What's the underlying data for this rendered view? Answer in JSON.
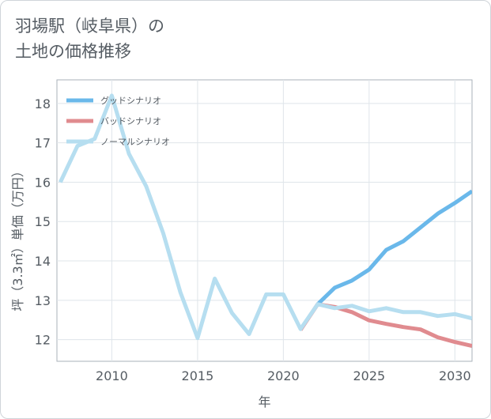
{
  "title": {
    "line1": "羽場駅（岐阜県）の",
    "line2": "土地の価格推移"
  },
  "chart_data": {
    "type": "line",
    "xlabel": "年",
    "ylabel": "坪（3.3㎡）単価（万円）",
    "xlim": [
      2006.8,
      2031
    ],
    "ylim": [
      11.45,
      18.6
    ],
    "xticks": [
      2010,
      2015,
      2020,
      2025,
      2030
    ],
    "yticks": [
      12,
      13,
      14,
      15,
      16,
      17,
      18
    ],
    "legend_position": "top-left",
    "grid": true,
    "series": [
      {
        "name": "グッドシナリオ",
        "color": "#6ab8ea",
        "x": [
          2022,
          2023,
          2024,
          2025,
          2026,
          2027,
          2028,
          2029,
          2030,
          2031
        ],
        "y": [
          12.9,
          13.32,
          13.5,
          13.78,
          14.28,
          14.5,
          14.85,
          15.2,
          15.47,
          15.77
        ]
      },
      {
        "name": "バッドシナリオ",
        "color": "#e08b8f",
        "x": [
          2021,
          2022,
          2023,
          2024,
          2025,
          2026,
          2027,
          2028,
          2029,
          2030,
          2031
        ],
        "y": [
          12.25,
          12.9,
          12.83,
          12.7,
          12.49,
          12.4,
          12.32,
          12.26,
          12.06,
          11.94,
          11.84
        ]
      },
      {
        "name": "ノーマルシナリオ",
        "color": "#b6def0",
        "x": [
          2007,
          2008,
          2009,
          2010,
          2011,
          2012,
          2013,
          2014,
          2015,
          2016,
          2017,
          2018,
          2019,
          2020,
          2021,
          2022,
          2023,
          2024,
          2025,
          2026,
          2027,
          2028,
          2029,
          2030,
          2031
        ],
        "y": [
          16.0,
          16.92,
          17.1,
          18.2,
          16.72,
          15.9,
          14.7,
          13.2,
          12.04,
          13.55,
          12.68,
          12.14,
          13.15,
          13.15,
          12.27,
          12.9,
          12.8,
          12.86,
          12.72,
          12.8,
          12.7,
          12.7,
          12.6,
          12.65,
          12.54
        ]
      }
    ]
  }
}
